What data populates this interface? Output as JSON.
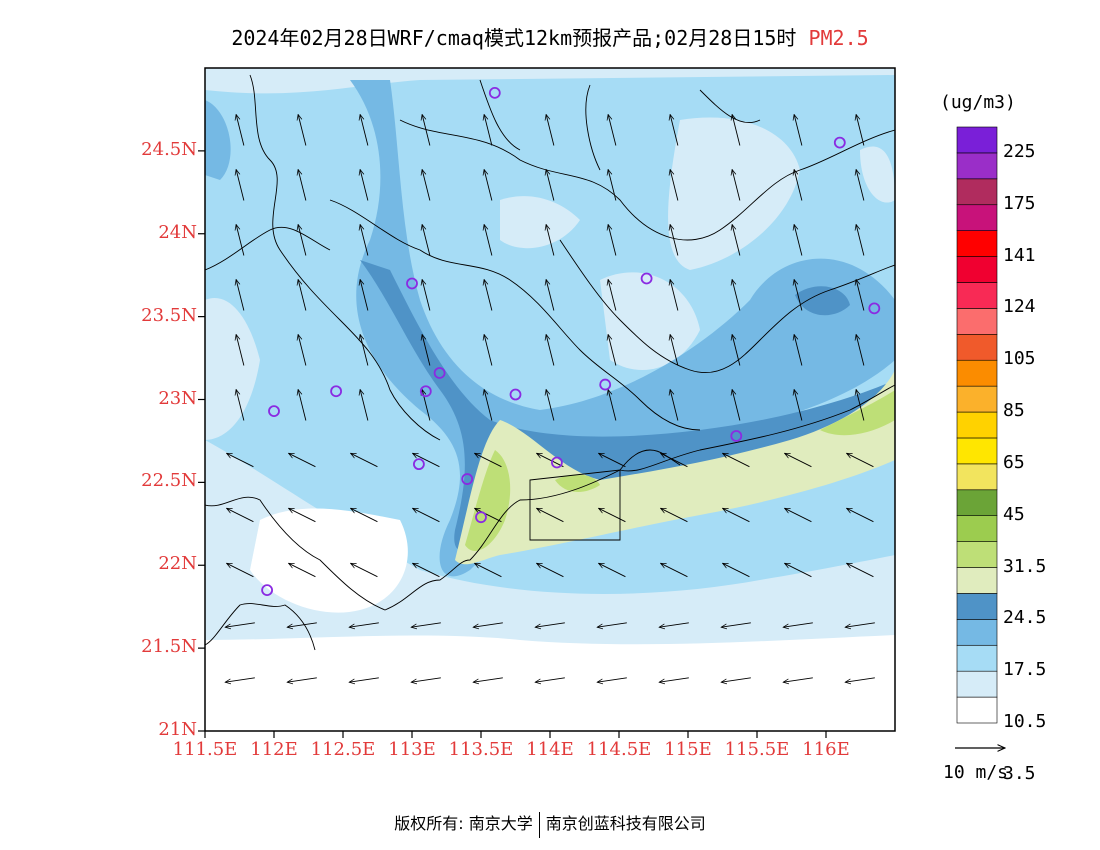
{
  "title": {
    "main": "2024年02月28日WRF/cmaq模式12km预报产品;02月28日15时",
    "pollutant": "PM2.5"
  },
  "axes": {
    "lat_labels": [
      "24.5N",
      "24N",
      "23.5N",
      "23N",
      "22.5N",
      "22N",
      "21.5N",
      "21N"
    ],
    "lon_labels": [
      "111.5E",
      "112E",
      "112.5E",
      "113E",
      "113.5E",
      "114E",
      "114.5E",
      "115E",
      "115.5E",
      "116E"
    ],
    "lat_range": [
      21.0,
      25.0
    ],
    "lon_range": [
      111.5,
      116.5
    ]
  },
  "legend": {
    "unit": "(ug/m3)",
    "labels": [
      "225",
      "175",
      "141",
      "124",
      "105",
      "85",
      "65",
      "45",
      "31.5",
      "24.5",
      "17.5",
      "10.5",
      "3.5"
    ],
    "colors": [
      "#ffffff",
      "#d6ecf8",
      "#a6dcf5",
      "#75b9e4",
      "#4f93c7",
      "#e0ecbe",
      "#bedf77",
      "#9ccc4f",
      "#6ba437",
      "#f2e45e",
      "#ffe600",
      "#ffd200",
      "#fbb12b",
      "#fb8c00",
      "#f05a2b",
      "#fb6d6d",
      "#f82a55",
      "#f00030",
      "#ff0000",
      "#c8127a",
      "#b02c5e",
      "#9a2ec8",
      "#7a1fd8"
    ]
  },
  "wind_reference": {
    "label": "10 m/s"
  },
  "footer": {
    "left": "版权所有: 南京大学",
    "right": "南京创蓝科技有限公司"
  },
  "stations": [
    {
      "lon": 113.6,
      "lat": 24.85
    },
    {
      "lon": 116.1,
      "lat": 24.55
    },
    {
      "lon": 114.7,
      "lat": 23.73
    },
    {
      "lon": 113.0,
      "lat": 23.7
    },
    {
      "lon": 116.35,
      "lat": 23.55
    },
    {
      "lon": 113.2,
      "lat": 23.16
    },
    {
      "lon": 112.45,
      "lat": 23.05
    },
    {
      "lon": 113.1,
      "lat": 23.05
    },
    {
      "lon": 113.75,
      "lat": 23.03
    },
    {
      "lon": 114.4,
      "lat": 23.09
    },
    {
      "lon": 112.0,
      "lat": 22.93
    },
    {
      "lon": 115.35,
      "lat": 22.78
    },
    {
      "lon": 113.05,
      "lat": 22.61
    },
    {
      "lon": 114.05,
      "lat": 22.62
    },
    {
      "lon": 113.4,
      "lat": 22.52
    },
    {
      "lon": 113.5,
      "lat": 22.29
    },
    {
      "lon": 111.95,
      "lat": 21.85
    }
  ]
}
